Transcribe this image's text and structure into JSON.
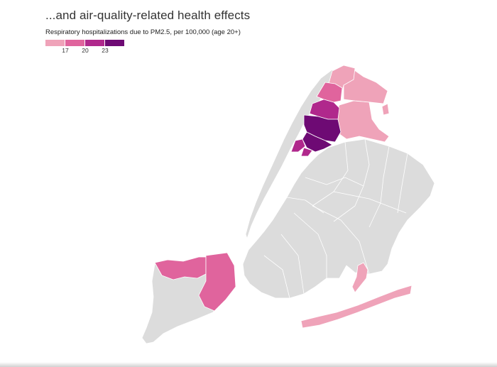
{
  "header": {
    "title": "...and air-quality-related health effects",
    "subtitle": "Respiratory hospitalizations due to PM2.5, per 100,000 (age 20+)"
  },
  "legend": {
    "ticks": [
      "17",
      "20",
      "23"
    ],
    "colors": [
      "#efa3b9",
      "#e0649d",
      "#b0288c",
      "#6e0a74"
    ]
  },
  "map": {
    "base_color": "#dcdcdc",
    "border_color": "#ffffff"
  }
}
